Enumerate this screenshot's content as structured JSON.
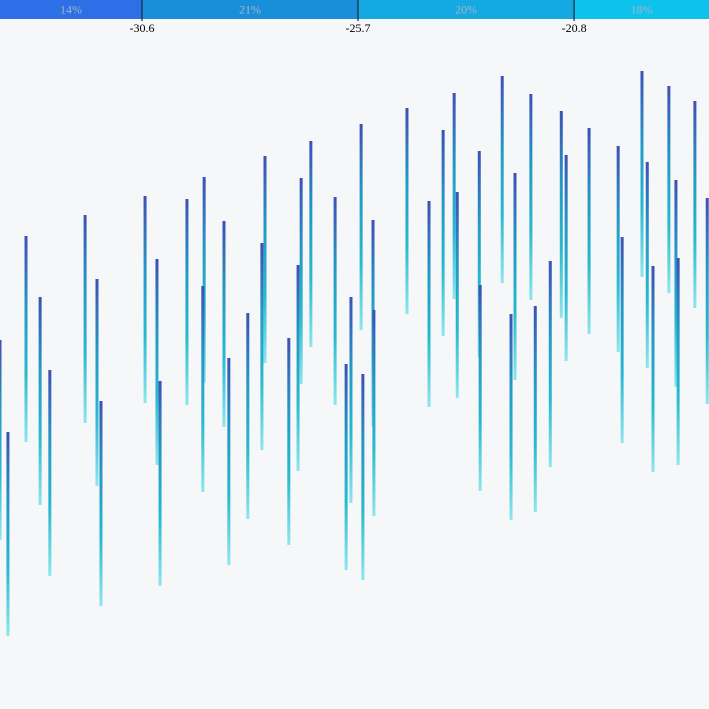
{
  "chart_data": {
    "type": "range",
    "xlim": [
      -33.82,
      -17.74
    ],
    "xticks": [
      -30.6,
      -25.7,
      -20.8
    ],
    "ylim": [
      0,
      66.9
    ],
    "shares": [
      14,
      21,
      20,
      18
    ],
    "share_labels": [
      "14%",
      "21%",
      "20%",
      "18%"
    ],
    "share_colors": [
      "#2c6fe6",
      "#1a8fd9",
      "#14a9e2",
      "#0ec2ee"
    ],
    "gradient": [
      "#3f4fb5",
      "#2596c6",
      "#28b9cf",
      "#8ee6ec"
    ],
    "x": [
      -33.82,
      -33.64,
      -33.23,
      -32.91,
      -32.69,
      -31.89,
      -31.62,
      -31.53,
      -30.53,
      -30.26,
      -30.19,
      -29.58,
      -29.19,
      -29.22,
      -28.74,
      -28.63,
      -28.2,
      -27.88,
      -27.81,
      -27.27,
      -27.06,
      -26.99,
      -26.77,
      -26.22,
      -25.97,
      -25.86,
      -25.63,
      -25.59,
      -25.36,
      -25.34,
      -24.59,
      -24.09,
      -23.77,
      -23.52,
      -23.45,
      -22.95,
      -22.93,
      -22.43,
      -22.23,
      -22.14,
      -21.78,
      -21.68,
      -21.34,
      -21.09,
      -20.98,
      -20.46,
      -19.8,
      -19.71,
      -19.26,
      -19.14,
      -19.01,
      -18.65,
      -18.49,
      -18.44,
      -18.06,
      -17.78
    ],
    "low": [
      16.9,
      7.3,
      26.7,
      20.4,
      13.3,
      28.6,
      22.3,
      10.3,
      30.6,
      24.4,
      12.3,
      30.4,
      32.6,
      21.7,
      28.2,
      14.4,
      19.0,
      25.9,
      34.6,
      16.4,
      23.8,
      32.5,
      36.2,
      30.4,
      13.9,
      20.6,
      37.9,
      12.9,
      28.3,
      19.3,
      39.5,
      30.2,
      37.3,
      41.0,
      31.1,
      35.2,
      21.8,
      42.6,
      18.9,
      32.9,
      40.9,
      19.7,
      24.2,
      39.1,
      34.8,
      37.5,
      35.7,
      26.6,
      43.2,
      34.1,
      23.7,
      41.6,
      32.2,
      24.4,
      40.1,
      30.5
    ],
    "high": [
      36.9,
      27.7,
      47.3,
      41.2,
      33.9,
      49.4,
      43.0,
      30.8,
      51.3,
      45.0,
      32.8,
      51.0,
      53.2,
      42.3,
      48.8,
      35.1,
      39.6,
      46.6,
      55.3,
      37.1,
      44.4,
      53.1,
      56.8,
      51.2,
      34.5,
      41.2,
      58.5,
      33.5,
      48.9,
      39.9,
      60.1,
      50.8,
      57.9,
      61.6,
      51.7,
      55.8,
      42.4,
      63.3,
      39.5,
      53.6,
      61.5,
      40.3,
      44.8,
      59.8,
      55.4,
      58.1,
      56.3,
      47.2,
      63.8,
      54.7,
      44.3,
      62.3,
      52.9,
      45.1,
      60.8,
      51.1
    ]
  }
}
